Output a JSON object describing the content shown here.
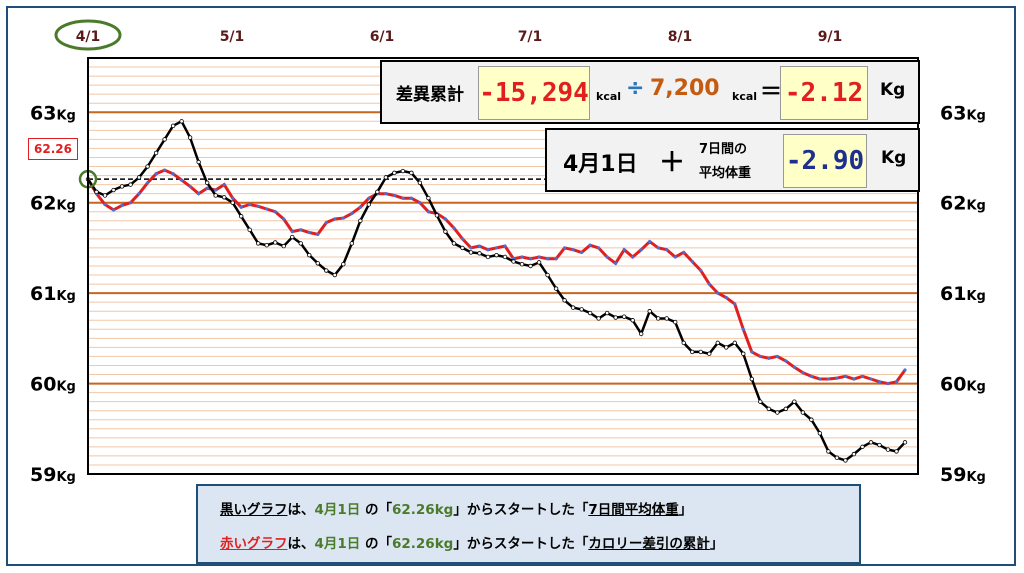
{
  "chart_data": {
    "type": "line",
    "x_ticks": [
      "4/1",
      "5/1",
      "6/1",
      "7/1",
      "8/1",
      "9/1"
    ],
    "highlighted_tick": "4/1",
    "y_ticks": [
      {
        "num": "63",
        "unit": "Kg",
        "value": 63
      },
      {
        "num": "62",
        "unit": "Kg",
        "value": 62
      },
      {
        "num": "61",
        "unit": "Kg",
        "value": 61
      },
      {
        "num": "60",
        "unit": "Kg",
        "value": 60
      },
      {
        "num": "59",
        "unit": "Kg",
        "value": 59
      }
    ],
    "ylim": [
      59,
      63.6
    ],
    "grid": true,
    "reference_line": {
      "value": 62.26,
      "style": "dashed"
    },
    "start_label": "62.26",
    "series": [
      {
        "color": "#000000",
        "points": [
          [
            0,
            62.26
          ],
          [
            2,
            62.12
          ],
          [
            4,
            62.08
          ],
          [
            6,
            62.14
          ],
          [
            8,
            62.18
          ],
          [
            10,
            62.2
          ],
          [
            12,
            62.28
          ],
          [
            14,
            62.4
          ],
          [
            16,
            62.55
          ],
          [
            18,
            62.7
          ],
          [
            20,
            62.85
          ],
          [
            22,
            62.9
          ],
          [
            24,
            62.72
          ],
          [
            26,
            62.45
          ],
          [
            28,
            62.22
          ],
          [
            30,
            62.08
          ],
          [
            32,
            62.06
          ],
          [
            34,
            62.0
          ],
          [
            36,
            61.85
          ],
          [
            38,
            61.7
          ],
          [
            40,
            61.55
          ],
          [
            42,
            61.53
          ],
          [
            44,
            61.56
          ],
          [
            46,
            61.52
          ],
          [
            48,
            61.62
          ],
          [
            50,
            61.55
          ],
          [
            52,
            61.42
          ],
          [
            54,
            61.33
          ],
          [
            56,
            61.25
          ],
          [
            58,
            61.2
          ],
          [
            60,
            61.32
          ],
          [
            62,
            61.55
          ],
          [
            64,
            61.8
          ],
          [
            66,
            61.98
          ],
          [
            68,
            62.12
          ],
          [
            70,
            62.28
          ],
          [
            72,
            62.33
          ],
          [
            74,
            62.35
          ],
          [
            76,
            62.33
          ],
          [
            78,
            62.22
          ],
          [
            80,
            62.05
          ],
          [
            82,
            61.86
          ],
          [
            84,
            61.68
          ],
          [
            86,
            61.55
          ],
          [
            88,
            61.5
          ],
          [
            90,
            61.45
          ],
          [
            92,
            61.44
          ],
          [
            94,
            61.4
          ],
          [
            96,
            61.42
          ],
          [
            98,
            61.4
          ],
          [
            100,
            61.35
          ],
          [
            102,
            61.32
          ],
          [
            104,
            61.3
          ],
          [
            106,
            61.34
          ],
          [
            108,
            61.2
          ],
          [
            110,
            61.05
          ],
          [
            112,
            60.92
          ],
          [
            114,
            60.84
          ],
          [
            116,
            60.82
          ],
          [
            118,
            60.78
          ],
          [
            120,
            60.72
          ],
          [
            122,
            60.78
          ],
          [
            124,
            60.73
          ],
          [
            126,
            60.74
          ],
          [
            128,
            60.7
          ],
          [
            130,
            60.55
          ],
          [
            132,
            60.8
          ],
          [
            134,
            60.72
          ],
          [
            136,
            60.72
          ],
          [
            138,
            60.68
          ],
          [
            140,
            60.45
          ],
          [
            142,
            60.35
          ],
          [
            144,
            60.35
          ],
          [
            146,
            60.33
          ],
          [
            148,
            60.45
          ],
          [
            150,
            60.4
          ],
          [
            152,
            60.45
          ],
          [
            154,
            60.33
          ],
          [
            156,
            60.05
          ],
          [
            158,
            59.8
          ],
          [
            160,
            59.72
          ],
          [
            162,
            59.68
          ],
          [
            164,
            59.72
          ],
          [
            166,
            59.8
          ],
          [
            168,
            59.68
          ],
          [
            170,
            59.6
          ],
          [
            172,
            59.45
          ],
          [
            174,
            59.25
          ],
          [
            176,
            59.18
          ],
          [
            178,
            59.15
          ],
          [
            180,
            59.22
          ],
          [
            182,
            59.3
          ],
          [
            184,
            59.35
          ],
          [
            186,
            59.32
          ],
          [
            188,
            59.27
          ],
          [
            190,
            59.25
          ],
          [
            192,
            59.35
          ]
        ]
      },
      {
        "color": "#e02020",
        "points": [
          [
            0,
            62.26
          ],
          [
            2,
            62.1
          ],
          [
            4,
            61.98
          ],
          [
            6,
            61.92
          ],
          [
            8,
            61.97
          ],
          [
            10,
            62.0
          ],
          [
            12,
            62.1
          ],
          [
            14,
            62.22
          ],
          [
            16,
            62.32
          ],
          [
            18,
            62.36
          ],
          [
            20,
            62.32
          ],
          [
            22,
            62.25
          ],
          [
            24,
            62.18
          ],
          [
            26,
            62.1
          ],
          [
            28,
            62.16
          ],
          [
            30,
            62.14
          ],
          [
            32,
            62.2
          ],
          [
            34,
            62.05
          ],
          [
            36,
            61.95
          ],
          [
            38,
            61.98
          ],
          [
            40,
            61.96
          ],
          [
            42,
            61.93
          ],
          [
            44,
            61.9
          ],
          [
            46,
            61.82
          ],
          [
            48,
            61.68
          ],
          [
            50,
            61.7
          ],
          [
            52,
            61.67
          ],
          [
            54,
            61.65
          ],
          [
            56,
            61.78
          ],
          [
            58,
            61.82
          ],
          [
            60,
            61.83
          ],
          [
            62,
            61.88
          ],
          [
            64,
            61.95
          ],
          [
            66,
            62.05
          ],
          [
            68,
            62.1
          ],
          [
            70,
            62.1
          ],
          [
            72,
            62.08
          ],
          [
            74,
            62.05
          ],
          [
            76,
            62.05
          ],
          [
            78,
            62.0
          ],
          [
            80,
            61.9
          ],
          [
            82,
            61.88
          ],
          [
            84,
            61.82
          ],
          [
            86,
            61.72
          ],
          [
            88,
            61.6
          ],
          [
            90,
            61.5
          ],
          [
            92,
            61.52
          ],
          [
            94,
            61.48
          ],
          [
            96,
            61.5
          ],
          [
            98,
            61.52
          ],
          [
            100,
            61.38
          ],
          [
            102,
            61.4
          ],
          [
            104,
            61.38
          ],
          [
            106,
            61.4
          ],
          [
            108,
            61.38
          ],
          [
            110,
            61.38
          ],
          [
            112,
            61.5
          ],
          [
            114,
            61.48
          ],
          [
            116,
            61.45
          ],
          [
            118,
            61.53
          ],
          [
            120,
            61.5
          ],
          [
            122,
            61.4
          ],
          [
            124,
            61.33
          ],
          [
            126,
            61.48
          ],
          [
            128,
            61.4
          ],
          [
            130,
            61.48
          ],
          [
            132,
            61.57
          ],
          [
            134,
            61.5
          ],
          [
            136,
            61.48
          ],
          [
            138,
            61.4
          ],
          [
            140,
            61.45
          ],
          [
            142,
            61.35
          ],
          [
            144,
            61.25
          ],
          [
            146,
            61.1
          ],
          [
            148,
            61.0
          ],
          [
            150,
            60.95
          ],
          [
            152,
            60.88
          ],
          [
            154,
            60.6
          ],
          [
            156,
            60.35
          ],
          [
            158,
            60.3
          ],
          [
            160,
            60.28
          ],
          [
            162,
            60.3
          ],
          [
            164,
            60.25
          ],
          [
            166,
            60.18
          ],
          [
            168,
            60.12
          ],
          [
            170,
            60.08
          ],
          [
            172,
            60.05
          ],
          [
            174,
            60.05
          ],
          [
            176,
            60.06
          ],
          [
            178,
            60.08
          ],
          [
            180,
            60.05
          ],
          [
            182,
            60.08
          ],
          [
            184,
            60.05
          ],
          [
            186,
            60.02
          ],
          [
            188,
            60.0
          ],
          [
            190,
            60.02
          ],
          [
            192,
            60.15
          ]
        ]
      }
    ]
  },
  "summary": {
    "label1": "差異累計",
    "diff_value": "-15,294",
    "unit_kcal_a": "kcal",
    "divide": "÷",
    "divisor": "7,200",
    "unit_kcal_b": "kcal",
    "equals": "＝",
    "result": "-2.12",
    "unit_kg1": "Kg",
    "date_label": "4月1日",
    "plus": "＋",
    "avg_line1": "7日間の",
    "avg_line2": "平均体重",
    "avg_value": "-2.90",
    "unit_kg2": "Kg"
  },
  "legend": {
    "line1": {
      "lead": "黒いグラフ",
      "t1": "は、",
      "d1": "4月1日",
      "t2": " の「",
      "d2": "62.26kg",
      "t3": "」からスタートした「",
      "tail": "7日間平均体重",
      "end": "」"
    },
    "line2": {
      "lead": "赤いグラフ",
      "t1": "は、",
      "d1": "4月1日",
      "t2": " の「",
      "d2": "62.26kg",
      "t3": "」からスタートした「",
      "tail": "カロリー差引の累計",
      "end": "」"
    }
  },
  "colors": {
    "black_series": "#000000",
    "red_series": "#e02020",
    "blue_dot": "#4a6fd6",
    "grid_major": "#c8651e",
    "grid_minor": "#f0c8a8"
  }
}
